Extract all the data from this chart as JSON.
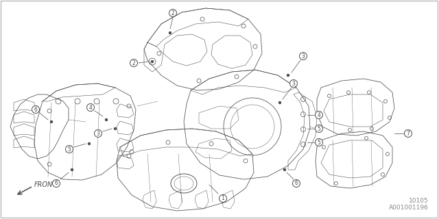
{
  "background_color": "#ffffff",
  "line_color": "#4a4a4a",
  "text_color": "#4a4a4a",
  "diagram_number": "10105",
  "part_number": "A001001196",
  "front_label": "FRONT",
  "fig_width": 6.4,
  "fig_height": 3.2,
  "dpi": 100
}
